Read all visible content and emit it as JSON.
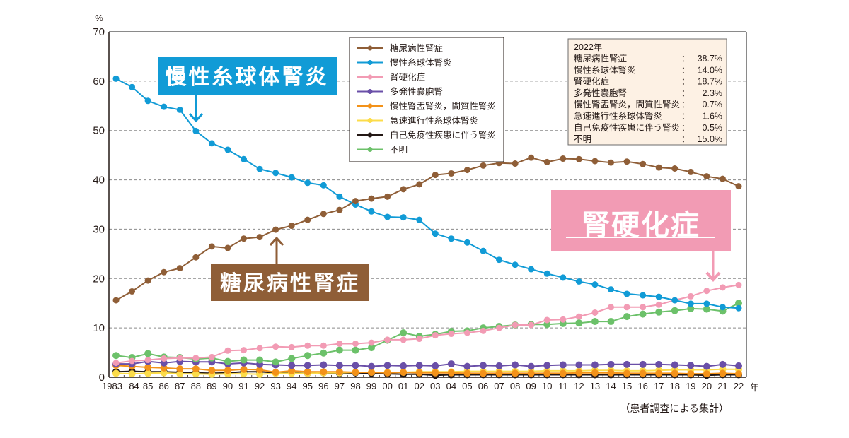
{
  "chart_data": {
    "type": "line",
    "title": "",
    "ylabel": "%",
    "xlabel": "年",
    "ylim": [
      0,
      70
    ],
    "yticks": [
      0,
      10,
      20,
      30,
      40,
      50,
      60,
      70
    ],
    "grid": "horizontal-dashed",
    "x": [
      1983,
      1984,
      1985,
      1986,
      1987,
      1988,
      1989,
      1990,
      1991,
      1992,
      1993,
      1994,
      1995,
      1996,
      1997,
      1998,
      1999,
      2000,
      2001,
      2002,
      2003,
      2004,
      2005,
      2006,
      2007,
      2008,
      2009,
      2010,
      2011,
      2012,
      2013,
      2014,
      2015,
      2016,
      2017,
      2018,
      2019,
      2020,
      2021,
      2022
    ],
    "xtick_labels": [
      "1983",
      "84",
      "85",
      "86",
      "87",
      "88",
      "89",
      "90",
      "91",
      "92",
      "93",
      "94",
      "95",
      "96",
      "97",
      "98",
      "99",
      "00",
      "01",
      "02",
      "03",
      "04",
      "05",
      "06",
      "07",
      "08",
      "09",
      "10",
      "11",
      "12",
      "13",
      "14",
      "15",
      "16",
      "17",
      "18",
      "19",
      "20",
      "21",
      "22"
    ],
    "legend_position": "top-center",
    "series": [
      {
        "name": "糖尿病性腎症",
        "color": "#8f5e37",
        "values": [
          15.6,
          17.4,
          19.6,
          21.3,
          22.1,
          24.3,
          26.5,
          26.2,
          28.1,
          28.4,
          29.9,
          30.7,
          31.9,
          33.1,
          33.9,
          35.7,
          36.2,
          36.6,
          38.1,
          39.1,
          41.0,
          41.3,
          42.0,
          42.9,
          43.4,
          43.3,
          44.5,
          43.6,
          44.3,
          44.2,
          43.8,
          43.5,
          43.7,
          43.2,
          42.5,
          42.3,
          41.6,
          40.7,
          40.2,
          38.7
        ]
      },
      {
        "name": "慢性糸球体腎炎",
        "color": "#119bd6",
        "values": [
          60.5,
          58.8,
          56.0,
          54.8,
          54.2,
          49.9,
          47.4,
          46.1,
          44.2,
          42.2,
          41.4,
          40.5,
          39.4,
          38.9,
          36.6,
          35.0,
          33.6,
          32.5,
          32.4,
          31.9,
          29.1,
          28.1,
          27.3,
          25.6,
          23.8,
          22.8,
          21.9,
          21.0,
          20.2,
          19.4,
          18.8,
          17.8,
          16.9,
          16.6,
          16.3,
          15.6,
          14.9,
          14.9,
          14.2,
          14.0
        ]
      },
      {
        "name": "腎硬化症",
        "color": "#f29bb4",
        "values": [
          2.9,
          3.3,
          3.5,
          3.8,
          3.9,
          3.9,
          4.1,
          5.4,
          5.5,
          5.9,
          6.2,
          6.1,
          6.4,
          6.4,
          6.8,
          6.8,
          7.0,
          7.6,
          7.6,
          7.8,
          8.5,
          8.8,
          9.0,
          9.4,
          10.0,
          10.6,
          10.6,
          11.6,
          11.7,
          12.3,
          13.1,
          14.2,
          14.2,
          14.2,
          14.7,
          15.6,
          16.4,
          17.5,
          18.2,
          18.7
        ]
      },
      {
        "name": "多発性嚢胞腎",
        "color": "#6a4fa8",
        "values": [
          2.7,
          2.7,
          3.2,
          2.9,
          3.2,
          3.1,
          3.1,
          2.7,
          2.9,
          2.6,
          2.5,
          2.4,
          2.4,
          2.5,
          2.4,
          2.4,
          2.2,
          2.4,
          2.3,
          2.4,
          2.3,
          2.7,
          2.2,
          2.4,
          2.3,
          2.5,
          2.2,
          2.4,
          2.5,
          2.5,
          2.5,
          2.6,
          2.6,
          2.6,
          2.6,
          2.5,
          2.4,
          2.2,
          2.6,
          2.3
        ]
      },
      {
        "name": "慢性腎盂腎炎，間質性腎炎",
        "color": "#f39219",
        "values": [
          2.4,
          2.2,
          2.0,
          1.9,
          1.7,
          1.7,
          1.4,
          1.4,
          1.6,
          1.5,
          1.0,
          1.3,
          1.1,
          1.1,
          1.1,
          1.0,
          1.0,
          0.9,
          1.0,
          0.9,
          0.9,
          0.9,
          0.8,
          0.8,
          0.8,
          0.8,
          0.8,
          0.8,
          0.8,
          0.9,
          0.9,
          0.9,
          0.8,
          0.8,
          0.8,
          0.8,
          0.7,
          0.7,
          0.8,
          0.7
        ]
      },
      {
        "name": "急速進行性糸球体腎炎",
        "color": "#fcdc4a",
        "values": [
          0.8,
          0.7,
          0.8,
          0.9,
          0.7,
          0.7,
          0.6,
          0.7,
          0.7,
          0.6,
          0.8,
          0.8,
          0.8,
          0.9,
          0.9,
          1.0,
          1.0,
          1.0,
          1.0,
          1.1,
          1.1,
          1.1,
          1.2,
          1.2,
          1.2,
          1.2,
          1.2,
          1.3,
          1.3,
          1.3,
          1.4,
          1.4,
          1.3,
          1.3,
          1.4,
          1.5,
          1.5,
          1.5,
          1.6,
          1.6
        ]
      },
      {
        "name": "自己免疫性疾患に伴う腎炎",
        "color": "#231815",
        "values": [
          1.1,
          1.2,
          1.1,
          1.1,
          1.0,
          0.9,
          0.8,
          0.9,
          1.1,
          1.1,
          0.9,
          0.9,
          0.8,
          0.9,
          0.8,
          0.9,
          0.8,
          0.7,
          0.6,
          0.6,
          0.4,
          0.5,
          0.5,
          0.5,
          0.5,
          0.5,
          0.5,
          0.5,
          0.5,
          0.5,
          0.5,
          0.5,
          0.5,
          0.5,
          0.5,
          0.5,
          0.5,
          0.4,
          0.5,
          0.5
        ]
      },
      {
        "name": "不明",
        "color": "#6cc16a",
        "values": [
          4.4,
          4.0,
          4.8,
          4.1,
          4.0,
          3.7,
          3.9,
          3.2,
          3.5,
          3.5,
          3.1,
          3.8,
          4.4,
          4.9,
          5.5,
          5.5,
          6.0,
          7.5,
          9.0,
          8.3,
          8.7,
          9.3,
          9.4,
          10.0,
          10.3,
          10.6,
          10.7,
          10.7,
          10.9,
          11.0,
          11.3,
          11.3,
          12.3,
          12.8,
          13.2,
          13.5,
          13.9,
          13.8,
          13.4,
          15.0
        ]
      }
    ],
    "summary_box": {
      "title": "2022年",
      "rows": [
        {
          "label": "糖尿病性腎症",
          "value": "38.7%"
        },
        {
          "label": "慢性糸球体腎炎",
          "value": "14.0%"
        },
        {
          "label": "腎硬化症",
          "value": "18.7%"
        },
        {
          "label": "多発性嚢胞腎",
          "value": "2.3%"
        },
        {
          "label": "慢性腎盂腎炎，間質性腎炎",
          "value": "0.7%"
        },
        {
          "label": "急速進行性糸球体腎炎",
          "value": "1.6%"
        },
        {
          "label": "自己免疫性疾患に伴う腎炎",
          "value": "0.5%"
        },
        {
          "label": "不明",
          "value": "15.0%"
        }
      ],
      "separator": "："
    },
    "annotations": [
      {
        "text": "慢性糸球体腎炎",
        "color": "#119bd6",
        "points_to_year": 1988,
        "arrow": "down"
      },
      {
        "text": "糖尿病性腎症",
        "color": "#8f5e37",
        "points_to_year": 1993,
        "arrow": "up"
      },
      {
        "text": "腎硬化症",
        "color": "#f29bb4",
        "points_to_year": 2020,
        "arrow": "down",
        "underline": true
      }
    ],
    "source_note": "（患者調査による集計）"
  }
}
